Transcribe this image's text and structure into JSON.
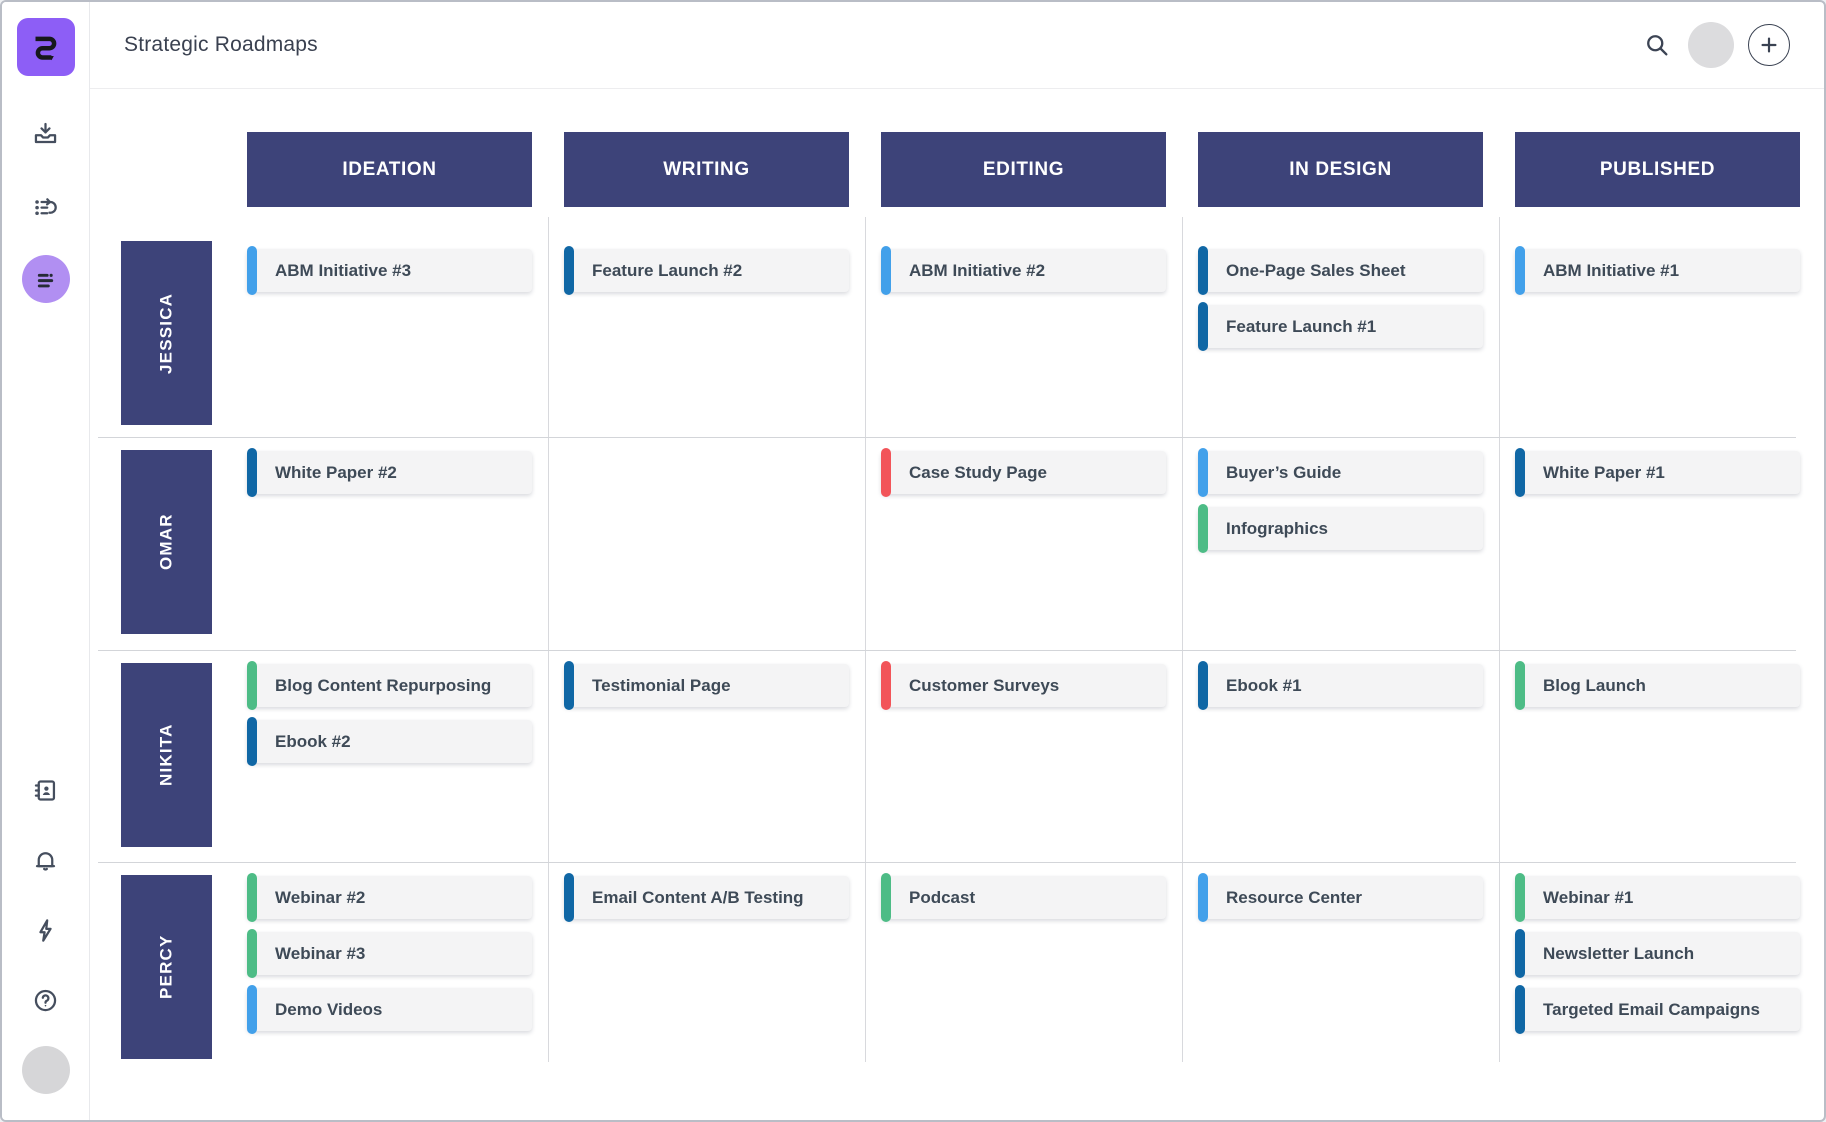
{
  "header": {
    "title": "Strategic Roadmaps"
  },
  "sidebar": {
    "logo_icon": "roadmap-app-logo",
    "top_icons": [
      "import-tray-icon",
      "list-history-icon",
      "roadmap-sliders-icon"
    ],
    "active_icon": "roadmap-sliders-icon",
    "bottom_icons": [
      "contacts-icon",
      "bell-icon",
      "lightning-icon",
      "help-icon"
    ]
  },
  "colors": {
    "indigo": "#3d4379",
    "purple": "#8d5ef6",
    "active_purple": "#b18ff2",
    "lightblue": "#42a0ea",
    "darkblue": "#1067a5",
    "green": "#4dbc86",
    "red": "#f25459",
    "card_bg": "#f4f4f5",
    "card_text": "#3e4a57"
  },
  "board": {
    "columns": [
      "IDEATION",
      "WRITING",
      "EDITING",
      "IN DESIGN",
      "PUBLISHED"
    ],
    "rows": [
      {
        "label": "JESSICA",
        "cells": [
          [
            {
              "title": "ABM Initiative #3",
              "accent": "lightblue"
            }
          ],
          [
            {
              "title": "Feature Launch #2",
              "accent": "darkblue"
            }
          ],
          [
            {
              "title": "ABM Initiative #2",
              "accent": "lightblue"
            }
          ],
          [
            {
              "title": "One-Page Sales Sheet",
              "accent": "darkblue"
            },
            {
              "title": "Feature Launch #1",
              "accent": "darkblue"
            }
          ],
          [
            {
              "title": "ABM Initiative #1",
              "accent": "lightblue"
            }
          ]
        ]
      },
      {
        "label": "OMAR",
        "cells": [
          [
            {
              "title": "White Paper #2",
              "accent": "darkblue"
            }
          ],
          [],
          [
            {
              "title": "Case Study Page",
              "accent": "red"
            }
          ],
          [
            {
              "title": "Buyer’s Guide",
              "accent": "lightblue"
            },
            {
              "title": "Infographics",
              "accent": "green"
            }
          ],
          [
            {
              "title": "White Paper #1",
              "accent": "darkblue"
            }
          ]
        ]
      },
      {
        "label": "NIKITA",
        "cells": [
          [
            {
              "title": "Blog Content Repurposing",
              "accent": "green"
            },
            {
              "title": "Ebook #2",
              "accent": "darkblue"
            }
          ],
          [
            {
              "title": "Testimonial Page",
              "accent": "darkblue"
            }
          ],
          [
            {
              "title": "Customer Surveys",
              "accent": "red"
            }
          ],
          [
            {
              "title": "Ebook #1",
              "accent": "darkblue"
            }
          ],
          [
            {
              "title": "Blog Launch",
              "accent": "green"
            }
          ]
        ]
      },
      {
        "label": "PERCY",
        "cells": [
          [
            {
              "title": "Webinar #2",
              "accent": "green"
            },
            {
              "title": "Webinar #3",
              "accent": "green"
            },
            {
              "title": "Demo Videos",
              "accent": "lightblue"
            }
          ],
          [
            {
              "title": "Email Content A/B Testing",
              "accent": "darkblue"
            }
          ],
          [
            {
              "title": "Podcast",
              "accent": "green"
            }
          ],
          [
            {
              "title": "Resource Center",
              "accent": "lightblue"
            }
          ],
          [
            {
              "title": "Webinar #1",
              "accent": "green"
            },
            {
              "title": "Newsletter Launch",
              "accent": "darkblue"
            },
            {
              "title": "Targeted Email Campaigns",
              "accent": "darkblue"
            }
          ]
        ]
      }
    ],
    "row_band_heights": [
      220,
      213,
      212,
      200
    ],
    "hline_tops": [
      348,
      561,
      773
    ],
    "vline_lefts": [
      458,
      775,
      1092,
      1409
    ]
  }
}
